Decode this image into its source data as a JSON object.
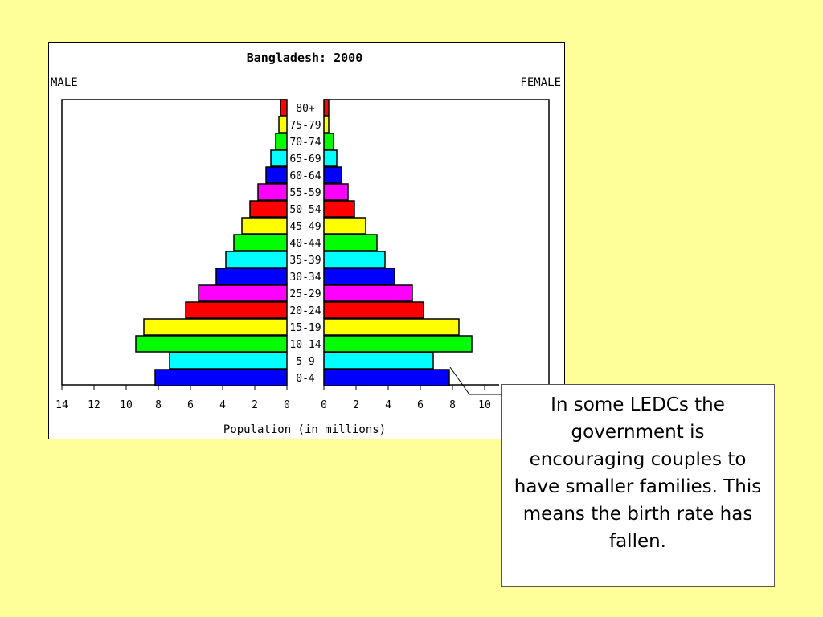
{
  "slide": {
    "callout_text": "In some LEDCs the government is encouraging couples to have smaller families. This means the birth rate has fallen.",
    "background_color": "#ffff99"
  },
  "chart_data": {
    "type": "bar",
    "subtype": "population-pyramid",
    "title": "Bangladesh: 2000",
    "left_label": "MALE",
    "right_label": "FEMALE",
    "xlabel": "Population (in millions)",
    "categories": [
      "80+",
      "75-79",
      "70-74",
      "65-69",
      "60-64",
      "55-59",
      "50-54",
      "45-49",
      "40-44",
      "35-39",
      "30-34",
      "25-29",
      "20-24",
      "15-19",
      "10-14",
      "5-9",
      "0-4"
    ],
    "series": [
      {
        "name": "MALE",
        "values": [
          0.4,
          0.5,
          0.7,
          1.0,
          1.3,
          1.8,
          2.3,
          2.8,
          3.3,
          3.8,
          4.4,
          5.5,
          6.3,
          8.9,
          9.4,
          7.3,
          8.2
        ]
      },
      {
        "name": "FEMALE",
        "values": [
          0.3,
          0.3,
          0.6,
          0.8,
          1.1,
          1.5,
          1.9,
          2.6,
          3.3,
          3.8,
          4.4,
          5.5,
          6.2,
          8.4,
          9.2,
          6.8,
          7.8
        ]
      }
    ],
    "bar_colors": [
      "#ff0000",
      "#ffff00",
      "#00ff00",
      "#00ffff",
      "#0000ff",
      "#ff00ff",
      "#ff0000",
      "#ffff00",
      "#00ff00",
      "#00ffff",
      "#0000ff",
      "#ff00ff",
      "#ff0000",
      "#ffff00",
      "#00ff00",
      "#00ffff",
      "#0000ff"
    ],
    "left_ticks": [
      "14",
      "12",
      "10",
      "8",
      "6",
      "4",
      "2",
      "0"
    ],
    "right_ticks": [
      "0",
      "2",
      "4",
      "6",
      "8",
      "10"
    ],
    "xlim_left": [
      0,
      14
    ],
    "xlim_right": [
      0,
      14
    ],
    "grid": false
  }
}
